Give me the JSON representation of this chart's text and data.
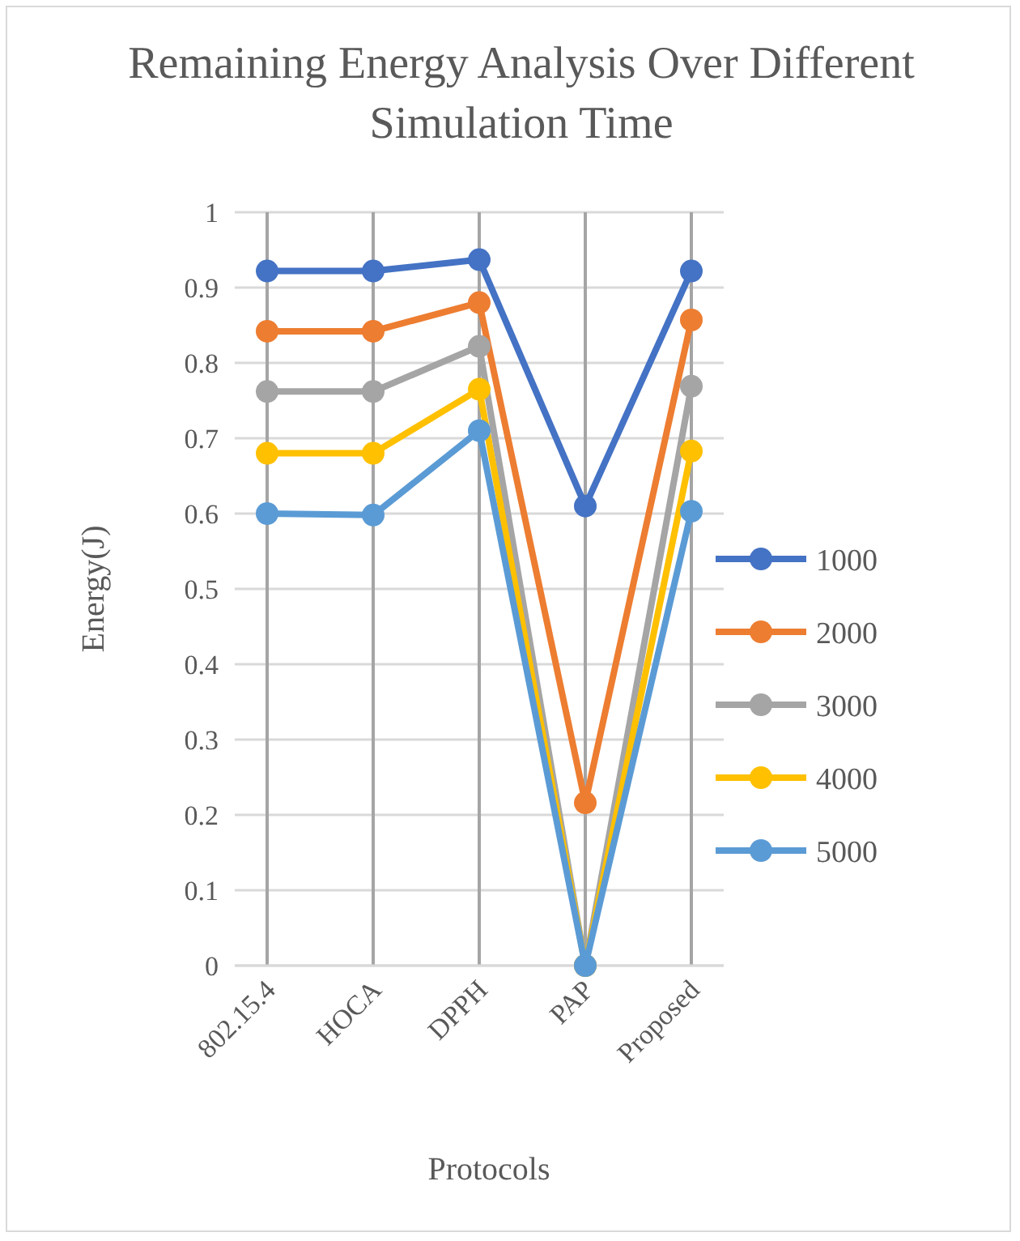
{
  "chart_data": {
    "type": "line",
    "title": "Remaining Energy Analysis Over Different Simulation Time",
    "xlabel": "Protocols",
    "ylabel": "Energy(J)",
    "categories": [
      "802.15.4",
      "HOCA",
      "DPPH",
      "PAP",
      "Proposed"
    ],
    "series": [
      {
        "name": "1000",
        "color": "#4472c4",
        "values": [
          0.922,
          0.922,
          0.937,
          0.61,
          0.922
        ]
      },
      {
        "name": "2000",
        "color": "#ed7d31",
        "values": [
          0.842,
          0.842,
          0.88,
          0.216,
          0.857
        ]
      },
      {
        "name": "3000",
        "color": "#a5a5a5",
        "values": [
          0.762,
          0.762,
          0.822,
          0,
          0.769
        ]
      },
      {
        "name": "4000",
        "color": "#ffc000",
        "values": [
          0.68,
          0.68,
          0.765,
          0,
          0.683
        ]
      },
      {
        "name": "5000",
        "color": "#5b9bd5",
        "values": [
          0.6,
          0.598,
          0.71,
          0,
          0.603
        ]
      }
    ],
    "ylim": [
      0,
      1
    ],
    "yticks": [
      0,
      0.1,
      0.2,
      0.3,
      0.4,
      0.5,
      0.6,
      0.7,
      0.8,
      0.9,
      1
    ],
    "grid": true,
    "legend": "right",
    "marker": "circle",
    "line_style": "solid"
  }
}
